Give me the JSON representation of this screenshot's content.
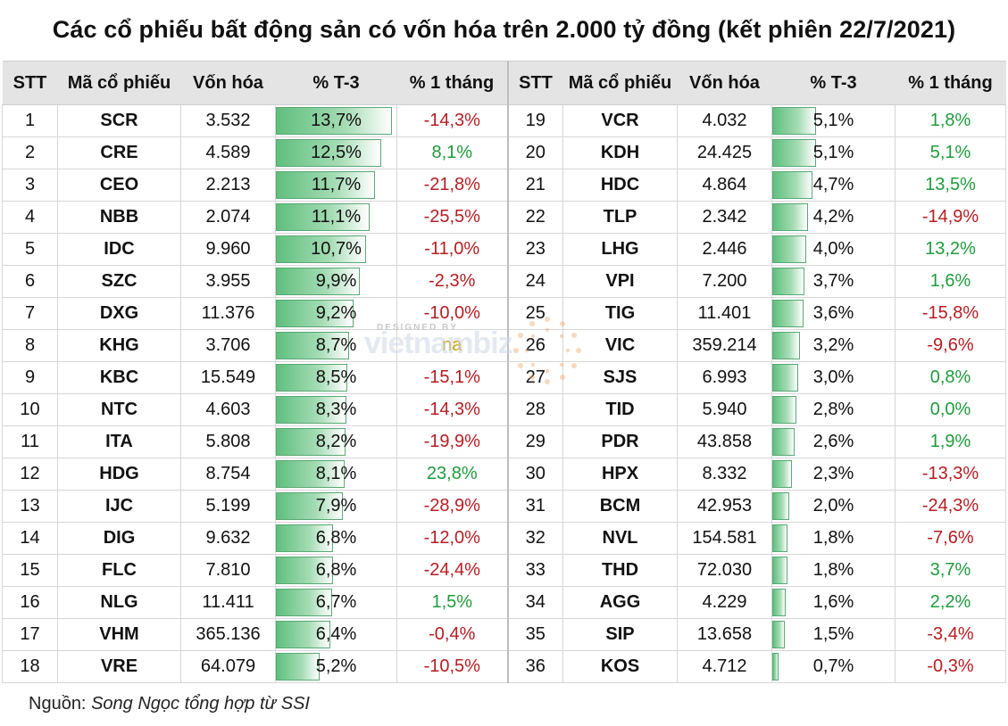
{
  "title": "Các cổ phiếu bất động sản có vốn hóa trên 2.000 tỷ đồng (kết phiên 22/7/2021)",
  "source_label": "Nguồn: ",
  "source_text": "Song Ngọc tổng hợp từ SSI",
  "watermark": {
    "top": "DESIGNED BY",
    "brand": "vietnambiz"
  },
  "headers": [
    "STT",
    "Mã cổ phiếu",
    "Vốn hóa",
    "% T-3",
    "% 1 tháng",
    "STT",
    "Mã cổ phiếu",
    "Vốn hóa",
    "% T-3",
    "% 1 tháng"
  ],
  "colors": {
    "positive": "#1f9b3c",
    "negative": "#b51d22",
    "na": "#c8a000",
    "bar": "#5fbf7e",
    "header_bg": "#e4e4e4"
  },
  "chart_data": {
    "type": "table",
    "bar_column": "% T-3",
    "bar_max": 13.7,
    "rows": [
      {
        "stt": "1",
        "code": "SCR",
        "cap": "3.532",
        "t3": "13,7%",
        "t3_value": 13.7,
        "m1": "-14,3%",
        "m1_sign": "neg"
      },
      {
        "stt": "2",
        "code": "CRE",
        "cap": "4.589",
        "t3": "12,5%",
        "t3_value": 12.5,
        "m1": "8,1%",
        "m1_sign": "pos"
      },
      {
        "stt": "3",
        "code": "CEO",
        "cap": "2.213",
        "t3": "11,7%",
        "t3_value": 11.7,
        "m1": "-21,8%",
        "m1_sign": "neg"
      },
      {
        "stt": "4",
        "code": "NBB",
        "cap": "2.074",
        "t3": "11,1%",
        "t3_value": 11.1,
        "m1": "-25,5%",
        "m1_sign": "neg"
      },
      {
        "stt": "5",
        "code": "IDC",
        "cap": "9.960",
        "t3": "10,7%",
        "t3_value": 10.7,
        "m1": "-11,0%",
        "m1_sign": "neg"
      },
      {
        "stt": "6",
        "code": "SZC",
        "cap": "3.955",
        "t3": "9,9%",
        "t3_value": 9.9,
        "m1": "-2,3%",
        "m1_sign": "neg"
      },
      {
        "stt": "7",
        "code": "DXG",
        "cap": "11.376",
        "t3": "9,2%",
        "t3_value": 9.2,
        "m1": "-10,0%",
        "m1_sign": "neg"
      },
      {
        "stt": "8",
        "code": "KHG",
        "cap": "3.706",
        "t3": "8,7%",
        "t3_value": 8.7,
        "m1": "na",
        "m1_sign": "na"
      },
      {
        "stt": "9",
        "code": "KBC",
        "cap": "15.549",
        "t3": "8,5%",
        "t3_value": 8.5,
        "m1": "-15,1%",
        "m1_sign": "neg"
      },
      {
        "stt": "10",
        "code": "NTC",
        "cap": "4.603",
        "t3": "8,3%",
        "t3_value": 8.3,
        "m1": "-14,3%",
        "m1_sign": "neg"
      },
      {
        "stt": "11",
        "code": "ITA",
        "cap": "5.808",
        "t3": "8,2%",
        "t3_value": 8.2,
        "m1": "-19,9%",
        "m1_sign": "neg"
      },
      {
        "stt": "12",
        "code": "HDG",
        "cap": "8.754",
        "t3": "8,1%",
        "t3_value": 8.1,
        "m1": "23,8%",
        "m1_sign": "pos"
      },
      {
        "stt": "13",
        "code": "IJC",
        "cap": "5.199",
        "t3": "7,9%",
        "t3_value": 7.9,
        "m1": "-28,9%",
        "m1_sign": "neg"
      },
      {
        "stt": "14",
        "code": "DIG",
        "cap": "9.632",
        "t3": "6,8%",
        "t3_value": 6.8,
        "m1": "-12,0%",
        "m1_sign": "neg"
      },
      {
        "stt": "15",
        "code": "FLC",
        "cap": "7.810",
        "t3": "6,8%",
        "t3_value": 6.8,
        "m1": "-24,4%",
        "m1_sign": "neg"
      },
      {
        "stt": "16",
        "code": "NLG",
        "cap": "11.411",
        "t3": "6,7%",
        "t3_value": 6.7,
        "m1": "1,5%",
        "m1_sign": "pos"
      },
      {
        "stt": "17",
        "code": "VHM",
        "cap": "365.136",
        "t3": "6,4%",
        "t3_value": 6.4,
        "m1": "-0,4%",
        "m1_sign": "neg"
      },
      {
        "stt": "18",
        "code": "VRE",
        "cap": "64.079",
        "t3": "5,2%",
        "t3_value": 5.2,
        "m1": "-10,5%",
        "m1_sign": "neg"
      },
      {
        "stt": "19",
        "code": "VCR",
        "cap": "4.032",
        "t3": "5,1%",
        "t3_value": 5.1,
        "m1": "1,8%",
        "m1_sign": "pos"
      },
      {
        "stt": "20",
        "code": "KDH",
        "cap": "24.425",
        "t3": "5,1%",
        "t3_value": 5.1,
        "m1": "5,1%",
        "m1_sign": "pos"
      },
      {
        "stt": "21",
        "code": "HDC",
        "cap": "4.864",
        "t3": "4,7%",
        "t3_value": 4.7,
        "m1": "13,5%",
        "m1_sign": "pos"
      },
      {
        "stt": "22",
        "code": "TLP",
        "cap": "2.342",
        "t3": "4,2%",
        "t3_value": 4.2,
        "m1": "-14,9%",
        "m1_sign": "neg"
      },
      {
        "stt": "23",
        "code": "LHG",
        "cap": "2.446",
        "t3": "4,0%",
        "t3_value": 4.0,
        "m1": "13,2%",
        "m1_sign": "pos"
      },
      {
        "stt": "24",
        "code": "VPI",
        "cap": "7.200",
        "t3": "3,7%",
        "t3_value": 3.7,
        "m1": "1,6%",
        "m1_sign": "pos"
      },
      {
        "stt": "25",
        "code": "TIG",
        "cap": "11.401",
        "t3": "3,6%",
        "t3_value": 3.6,
        "m1": "-15,8%",
        "m1_sign": "neg"
      },
      {
        "stt": "26",
        "code": "VIC",
        "cap": "359.214",
        "t3": "3,2%",
        "t3_value": 3.2,
        "m1": "-9,6%",
        "m1_sign": "neg"
      },
      {
        "stt": "27",
        "code": "SJS",
        "cap": "6.993",
        "t3": "3,0%",
        "t3_value": 3.0,
        "m1": "0,8%",
        "m1_sign": "pos"
      },
      {
        "stt": "28",
        "code": "TID",
        "cap": "5.940",
        "t3": "2,8%",
        "t3_value": 2.8,
        "m1": "0,0%",
        "m1_sign": "pos"
      },
      {
        "stt": "29",
        "code": "PDR",
        "cap": "43.858",
        "t3": "2,6%",
        "t3_value": 2.6,
        "m1": "1,9%",
        "m1_sign": "pos"
      },
      {
        "stt": "30",
        "code": "HPX",
        "cap": "8.332",
        "t3": "2,3%",
        "t3_value": 2.3,
        "m1": "-13,3%",
        "m1_sign": "neg"
      },
      {
        "stt": "31",
        "code": "BCM",
        "cap": "42.953",
        "t3": "2,0%",
        "t3_value": 2.0,
        "m1": "-24,3%",
        "m1_sign": "neg"
      },
      {
        "stt": "32",
        "code": "NVL",
        "cap": "154.581",
        "t3": "1,8%",
        "t3_value": 1.8,
        "m1": "-7,6%",
        "m1_sign": "neg"
      },
      {
        "stt": "33",
        "code": "THD",
        "cap": "72.030",
        "t3": "1,8%",
        "t3_value": 1.8,
        "m1": "3,7%",
        "m1_sign": "pos"
      },
      {
        "stt": "34",
        "code": "AGG",
        "cap": "4.229",
        "t3": "1,6%",
        "t3_value": 1.6,
        "m1": "2,2%",
        "m1_sign": "pos"
      },
      {
        "stt": "35",
        "code": "SIP",
        "cap": "13.658",
        "t3": "1,5%",
        "t3_value": 1.5,
        "m1": "-3,4%",
        "m1_sign": "neg"
      },
      {
        "stt": "36",
        "code": "KOS",
        "cap": "4.712",
        "t3": "0,7%",
        "t3_value": 0.7,
        "m1": "-0,3%",
        "m1_sign": "neg"
      }
    ]
  }
}
